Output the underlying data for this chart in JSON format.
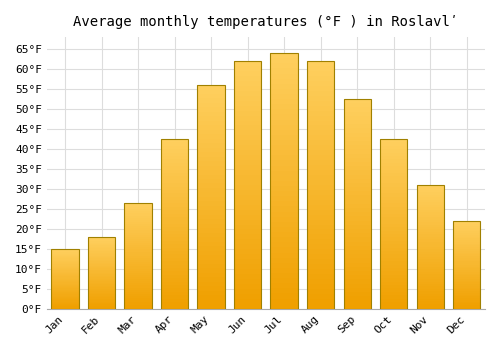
{
  "title": "Average monthly temperatures (°F ) in Roslavlʹ",
  "months": [
    "Jan",
    "Feb",
    "Mar",
    "Apr",
    "May",
    "Jun",
    "Jul",
    "Aug",
    "Sep",
    "Oct",
    "Nov",
    "Dec"
  ],
  "values": [
    15,
    18,
    26.5,
    42.5,
    56,
    62,
    64,
    62,
    52.5,
    42.5,
    31,
    22
  ],
  "bar_color_light": "#FFD060",
  "bar_color_dark": "#F0A000",
  "bar_edge_color": "#A08000",
  "background_color": "#FFFFFF",
  "grid_color": "#DDDDDD",
  "ylim": [
    0,
    68
  ],
  "yticks": [
    0,
    5,
    10,
    15,
    20,
    25,
    30,
    35,
    40,
    45,
    50,
    55,
    60,
    65
  ],
  "title_fontsize": 10,
  "tick_fontsize": 8,
  "font_family": "monospace",
  "bar_width": 0.75
}
